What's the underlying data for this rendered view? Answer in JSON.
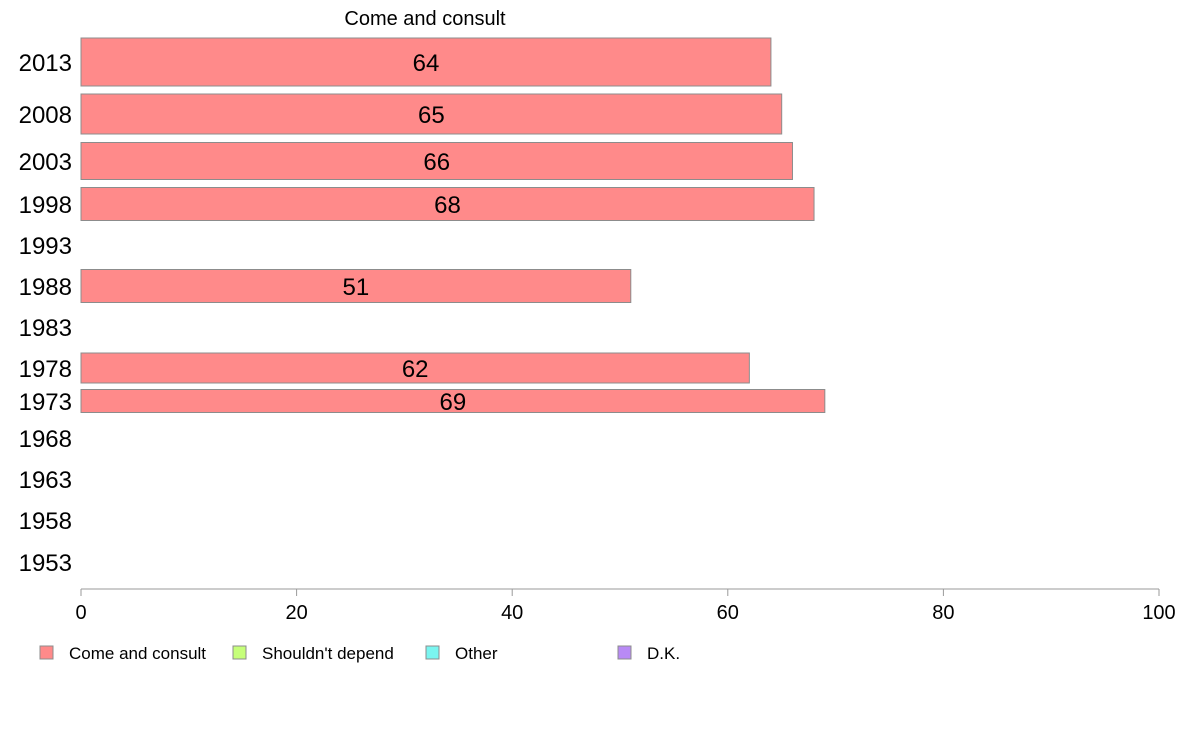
{
  "chart_data": {
    "type": "bar",
    "orientation": "horizontal",
    "title": "Come and consult",
    "categories": [
      "2013",
      "2008",
      "2003",
      "1998",
      "1993",
      "1988",
      "1983",
      "1978",
      "1973",
      "1968",
      "1963",
      "1958",
      "1953"
    ],
    "series": [
      {
        "name": "Come and consult",
        "color": "#ff8a8a",
        "values": [
          64,
          65,
          66,
          68,
          null,
          51,
          null,
          62,
          69,
          null,
          null,
          null,
          null
        ]
      }
    ],
    "data_labels": [
      "64",
      "65",
      "66",
      "68",
      "",
      "51",
      "",
      "62",
      "69",
      "",
      "",
      "",
      ""
    ],
    "xlim": [
      0,
      100
    ],
    "xticks": [
      0,
      20,
      40,
      60,
      80,
      100
    ],
    "grid": false,
    "legend": {
      "placement": "bottom",
      "entries": [
        {
          "label": "Come and consult",
          "color": "#ff8a8a"
        },
        {
          "label": "Shouldn't depend",
          "color": "#c6ff7a"
        },
        {
          "label": "Other",
          "color": "#7af5f0"
        },
        {
          "label": "D.K.",
          "color": "#b88af5"
        }
      ]
    }
  }
}
